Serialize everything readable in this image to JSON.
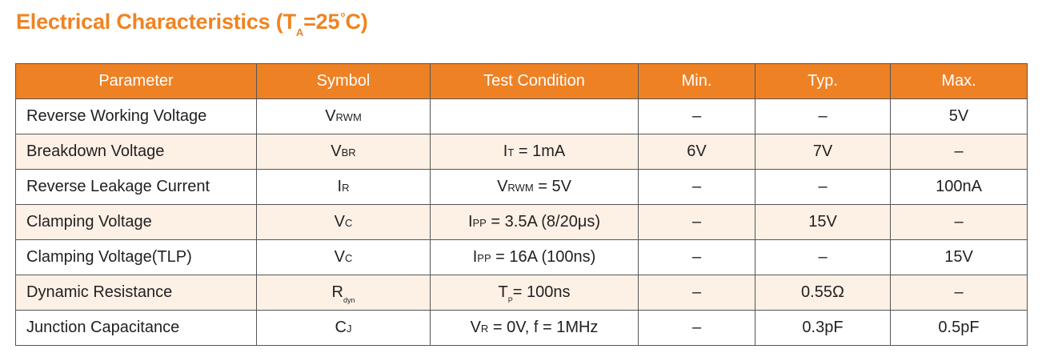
{
  "title": {
    "main": "Electrical Characteristics (T",
    "subscript": "A",
    "equals": "=25",
    "degree": "°",
    "unit": "C)"
  },
  "table": {
    "headers": [
      "Parameter",
      "Symbol",
      "Test Condition",
      "Min.",
      "Typ.",
      "Max."
    ],
    "rows": [
      {
        "parameter": "Reverse Working Voltage",
        "symbol_main": "V",
        "symbol_sub": "RWM",
        "cond_main": "",
        "cond_sub": "",
        "cond_rest": "",
        "min": "–",
        "typ": "–",
        "max": "5V"
      },
      {
        "parameter": "Breakdown Voltage",
        "symbol_main": "V",
        "symbol_sub": "BR",
        "cond_main": "I",
        "cond_sub": "T",
        "cond_rest": " = 1mA",
        "min": "6V",
        "typ": "7V",
        "max": "–"
      },
      {
        "parameter": "Reverse Leakage Current",
        "symbol_main": "I",
        "symbol_sub": "R",
        "cond_main": "V",
        "cond_sub": "RWM",
        "cond_rest": " = 5V",
        "min": "–",
        "typ": "–",
        "max": "100nA"
      },
      {
        "parameter": "Clamping Voltage",
        "symbol_main": "V",
        "symbol_sub": "C",
        "cond_main": "I",
        "cond_sub": "PP",
        "cond_rest": " = 3.5A (8/20μs)",
        "min": "–",
        "typ": "15V",
        "max": "–"
      },
      {
        "parameter": "Clamping Voltage(TLP)",
        "symbol_main": "V",
        "symbol_sub": "C",
        "cond_main": "I",
        "cond_sub": "PP",
        "cond_rest": " = 16A (100ns)",
        "min": "–",
        "typ": "–",
        "max": "15V"
      },
      {
        "parameter": "Dynamic Resistance",
        "symbol_main": "R",
        "symbol_sub": "dyn",
        "cond_main": "T",
        "cond_sub": "P",
        "cond_rest": "= 100ns",
        "min": "–",
        "typ": "0.55Ω",
        "max": "–"
      },
      {
        "parameter": "Junction Capacitance",
        "symbol_main": "C",
        "symbol_sub": "J",
        "cond_main": "V",
        "cond_sub": "R",
        "cond_rest": " = 0V, f = 1MHz",
        "min": "–",
        "typ": "0.3pF",
        "max": "0.5pF"
      }
    ]
  },
  "colors": {
    "accent": "#f08321",
    "header_bg": "#ee8124",
    "stripe_bg": "#fdf1e6",
    "border": "#555555"
  }
}
